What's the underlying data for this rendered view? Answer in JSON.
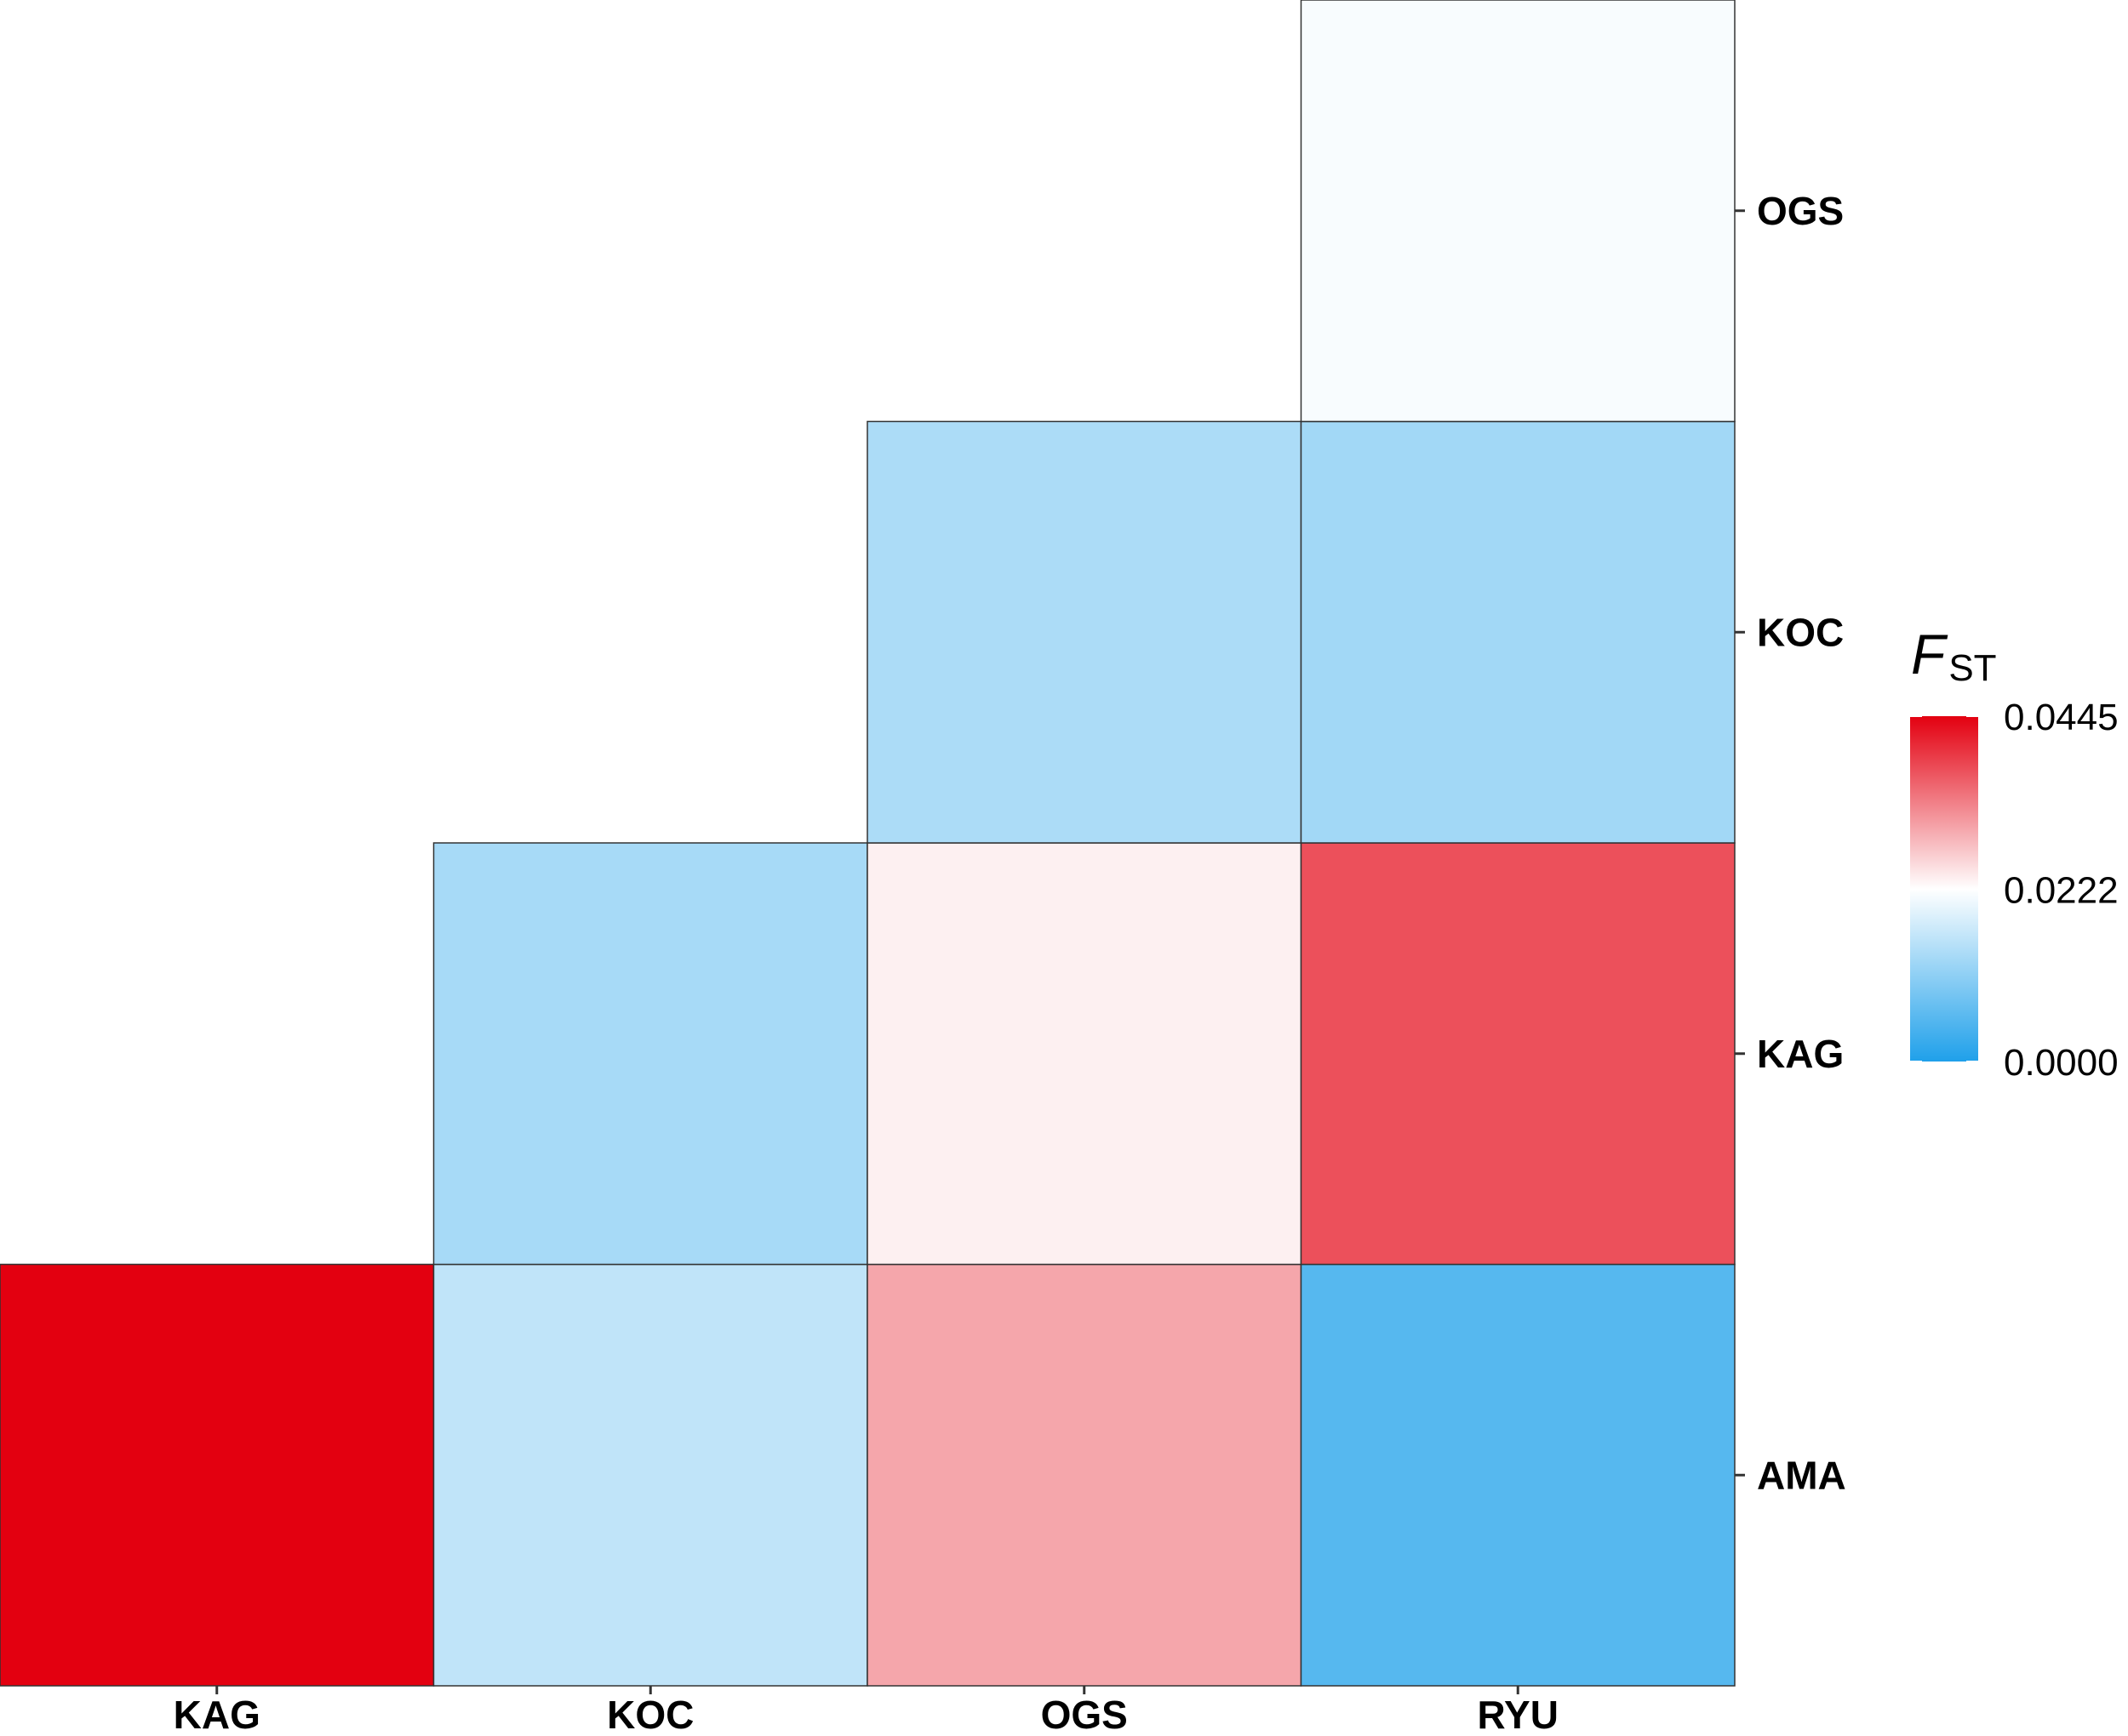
{
  "chart_data": {
    "type": "heatmap",
    "x_categories": [
      "KAG",
      "KOC",
      "OGS",
      "RYU"
    ],
    "y_categories": [
      "AMA",
      "KAG",
      "KOC",
      "OGS"
    ],
    "cells": [
      {
        "x": "KAG",
        "y": "AMA",
        "value": 0.0445
      },
      {
        "x": "KOC",
        "y": "AMA",
        "value": 0.016
      },
      {
        "x": "OGS",
        "y": "AMA",
        "value": 0.03
      },
      {
        "x": "RYU",
        "y": "AMA",
        "value": 0.0055
      },
      {
        "x": "KOC",
        "y": "KAG",
        "value": 0.0135
      },
      {
        "x": "OGS",
        "y": "KAG",
        "value": 0.0235
      },
      {
        "x": "RYU",
        "y": "KAG",
        "value": 0.0375
      },
      {
        "x": "OGS",
        "y": "KOC",
        "value": 0.014
      },
      {
        "x": "RYU",
        "y": "KOC",
        "value": 0.013
      },
      {
        "x": "RYU",
        "y": "OGS",
        "value": 0.0215
      }
    ],
    "legend": {
      "title": "F",
      "title_subscript": "ST",
      "placement": "right",
      "min": 0.0,
      "mid": 0.0222,
      "max": 0.0445,
      "tick_labels": [
        "0.0445",
        "0.0222",
        "0.0000"
      ],
      "colors": {
        "low": "#1fa0ea",
        "mid": "#ffffff",
        "high": "#e30010"
      }
    },
    "grid": false
  }
}
